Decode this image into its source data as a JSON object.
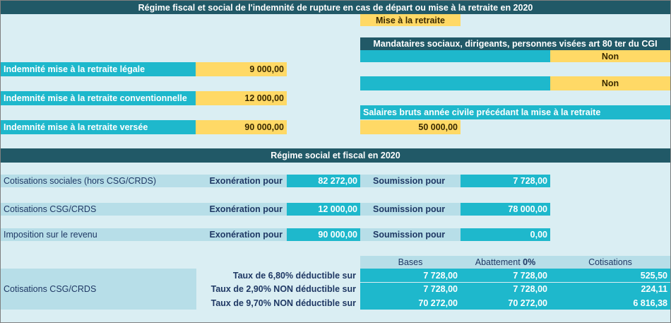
{
  "header": {
    "title": "Régime fiscal et social de l'indemnité de rupture en cas de départ ou mise à la retraite en 2020"
  },
  "inputs": {
    "mode": "Mise à la retraite",
    "mandataires": {
      "title": "Mandataires sociaux, dirigeants, personnes visées art 80 ter du CGI",
      "answers": [
        "Non",
        "Non"
      ]
    },
    "indemnities": [
      {
        "label": "Indemnité mise à la retraite légale",
        "value": "9 000,00"
      },
      {
        "label": "Indemnité mise à la retraite conventionnelle",
        "value": "12 000,00"
      },
      {
        "label": "Indemnité mise à la retraite versée",
        "value": "90 000,00"
      }
    ],
    "salary": {
      "label": "Salaires bruts année civile précédant la mise à la retraite",
      "value": "50 000,00"
    }
  },
  "section": {
    "title": "Régime social et fiscal en 2020",
    "rows": [
      {
        "label": "Cotisations sociales (hors CSG/CRDS)",
        "exo_label": "Exonération pour",
        "exo": "82 272,00",
        "sub_label": "Soumission pour",
        "sub": "7 728,00"
      },
      {
        "label": "Cotisations CSG/CRDS",
        "exo_label": "Exonération pour",
        "exo": "12 000,00",
        "sub_label": "Soumission pour",
        "sub": "78 000,00"
      },
      {
        "label": "Imposition sur le revenu",
        "exo_label": "Exonération pour",
        "exo": "90 000,00",
        "sub_label": "Soumission pour",
        "sub": "0,00"
      }
    ]
  },
  "table": {
    "label": "Cotisations CSG/CRDS",
    "columns": [
      "Bases",
      "Abattement",
      "0%",
      "Cotisations"
    ],
    "rows": [
      [
        "Taux de 6,80% déductible sur",
        "7 728,00",
        "7 728,00",
        "525,50"
      ],
      [
        "Taux de 2,90% NON déductible sur",
        "7 728,00",
        "7 728,00",
        "224,11"
      ],
      [
        "Taux de 9,70% NON déductible sur",
        "70 272,00",
        "70 272,00",
        "6 816,38"
      ]
    ]
  }
}
